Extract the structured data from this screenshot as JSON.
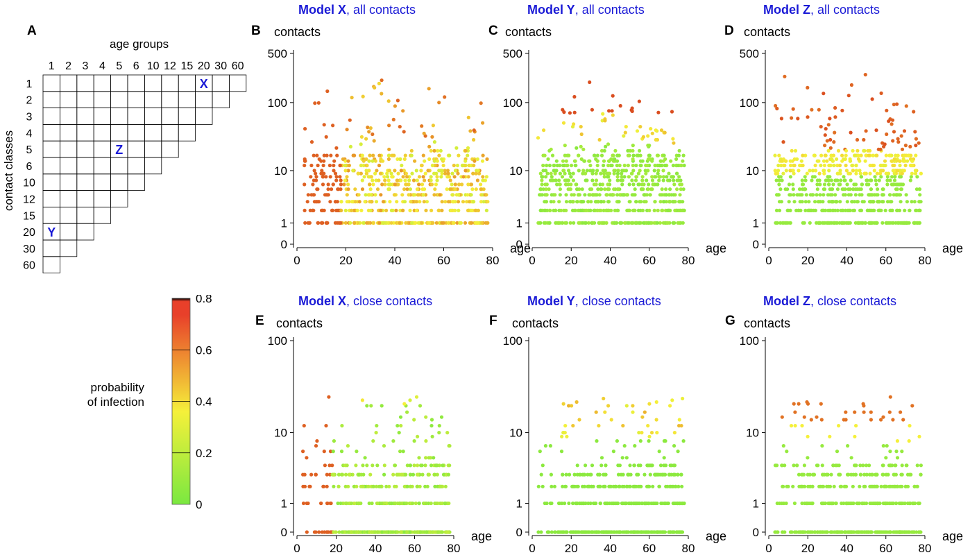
{
  "panel_a": {
    "letter": "A",
    "x_title": "age groups",
    "y_title": "contact classes",
    "age_groups": [
      "1",
      "2",
      "3",
      "4",
      "5",
      "6",
      "10",
      "12",
      "15",
      "20",
      "30",
      "60"
    ],
    "contact_classes": [
      "1",
      "2",
      "3",
      "4",
      "5",
      "6",
      "10",
      "12",
      "15",
      "20",
      "30",
      "60"
    ],
    "markers": [
      {
        "label": "X",
        "age_index": 9,
        "class_index": 0
      },
      {
        "label": "Z",
        "age_index": 4,
        "class_index": 4
      },
      {
        "label": "Y",
        "age_index": 0,
        "class_index": 9
      }
    ],
    "marker_color": "#1a1ad6"
  },
  "colorbar": {
    "label_line1": "probability",
    "label_line2": "of infection",
    "ticks": [
      "0.8",
      "0.6",
      "0.4",
      "0.2",
      "0"
    ],
    "colors": {
      "low": "#7ae840",
      "mid": "#f5f03a",
      "high": "#e8402a",
      "top": "#000000"
    }
  },
  "chart_data": [
    {
      "letter": "B",
      "model": "Model X",
      "subset": ", all contacts",
      "type": "scatter",
      "ylabel": "contacts",
      "xlabel": "age",
      "xticks": [
        "0",
        "20",
        "40",
        "60",
        "80"
      ],
      "yticks": [
        "500",
        "100",
        "10",
        "1",
        "0"
      ],
      "xlim": [
        0,
        80
      ],
      "ylim": [
        0,
        500
      ],
      "yscale": "log1p",
      "description_only": false
    },
    {
      "letter": "C",
      "model": "Model Y",
      "subset": ", all contacts",
      "type": "scatter",
      "ylabel": "contacts",
      "xlabel": "age",
      "xticks": [
        "0",
        "20",
        "40",
        "60",
        "80"
      ],
      "yticks": [
        "500",
        "100",
        "10",
        "1",
        "0"
      ],
      "xlim": [
        0,
        80
      ],
      "ylim": [
        0,
        500
      ],
      "yscale": "log1p"
    },
    {
      "letter": "D",
      "model": "Model Z",
      "subset": ", all contacts",
      "type": "scatter",
      "ylabel": "contacts",
      "xlabel": "age",
      "xticks": [
        "0",
        "20",
        "40",
        "60",
        "80"
      ],
      "yticks": [
        "500",
        "100",
        "10",
        "1",
        "0"
      ],
      "xlim": [
        0,
        80
      ],
      "ylim": [
        0,
        500
      ],
      "yscale": "log1p"
    },
    {
      "letter": "E",
      "model": "Model X",
      "subset": ", close contacts",
      "type": "scatter",
      "ylabel": "contacts",
      "xlabel": "age",
      "xticks": [
        "0",
        "20",
        "40",
        "60",
        "80"
      ],
      "yticks": [
        "100",
        "10",
        "1",
        "0"
      ],
      "xlim": [
        0,
        80
      ],
      "ylim": [
        0,
        100
      ],
      "yscale": "log1p"
    },
    {
      "letter": "F",
      "model": "Model Y",
      "subset": ", close contacts",
      "type": "scatter",
      "ylabel": "contacts",
      "xlabel": "age",
      "xticks": [
        "0",
        "20",
        "40",
        "60",
        "80"
      ],
      "yticks": [
        "100",
        "10",
        "1",
        "0"
      ],
      "xlim": [
        0,
        80
      ],
      "ylim": [
        0,
        100
      ],
      "yscale": "log1p"
    },
    {
      "letter": "G",
      "model": "Model Z",
      "subset": ", close contacts",
      "type": "scatter",
      "ylabel": "contacts",
      "xlabel": "age",
      "xticks": [
        "0",
        "20",
        "40",
        "60",
        "80"
      ],
      "yticks": [
        "100",
        "10",
        "1",
        "0"
      ],
      "xlim": [
        0,
        80
      ],
      "ylim": [
        0,
        100
      ],
      "yscale": "log1p"
    }
  ]
}
